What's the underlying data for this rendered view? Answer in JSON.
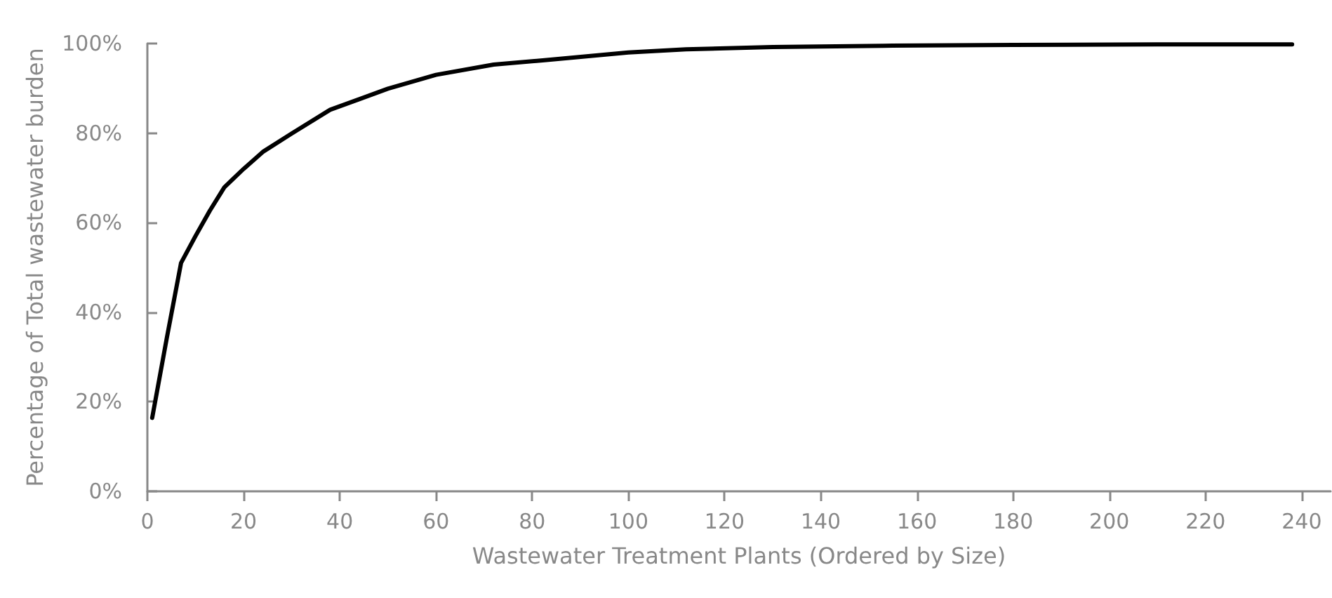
{
  "chart_data": {
    "type": "line",
    "xlabel": "Wastewater Treatment Plants (Ordered by Size)",
    "ylabel": "Percentage of Total wastewater burden",
    "x": [
      1,
      4,
      7,
      10,
      13,
      16,
      20,
      24,
      30,
      38,
      50,
      60,
      72,
      83,
      100,
      112,
      130,
      153,
      180,
      210,
      238
    ],
    "series": [
      {
        "color": "#000000",
        "values": [
          16.4,
          34,
          51,
          57,
          62.7,
          67.9,
          72,
          75.8,
          79.9,
          85.2,
          89.9,
          93,
          95.3,
          96.3,
          98,
          98.7,
          99.2,
          99.5,
          99.7,
          99.8,
          99.8
        ]
      }
    ],
    "xlim": [
      0,
      246
    ],
    "xticks": [
      0,
      20,
      40,
      60,
      80,
      100,
      120,
      140,
      160,
      180,
      200,
      220,
      240
    ],
    "ylim": [
      0,
      100
    ],
    "yticks": [
      {
        "value": 0,
        "label": "0%"
      },
      {
        "value": 20,
        "label": "20%"
      },
      {
        "value": 40,
        "label": "40%"
      },
      {
        "value": 60,
        "label": "60%"
      },
      {
        "value": 80,
        "label": "80%"
      },
      {
        "value": 100,
        "label": "100%"
      }
    ],
    "grid": false,
    "marker": "none",
    "line_style": "solid"
  }
}
